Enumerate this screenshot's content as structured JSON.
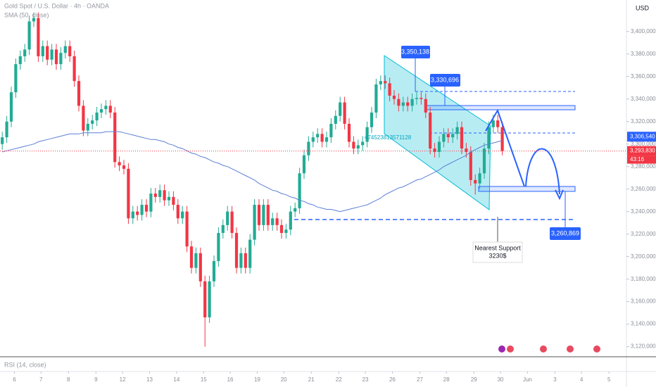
{
  "chart_data": {
    "type": "candlestick",
    "title": "Gold Spot / U.S. Dollar · 4h · OANDA",
    "currency": "USD",
    "open": [
      3300,
      3306,
      3320,
      3346,
      3371,
      3378,
      3384,
      3409,
      3412,
      3378,
      3387,
      3375,
      3384,
      3371,
      3381,
      3387,
      3378,
      3356,
      3334,
      3312,
      3318,
      3321,
      3328,
      3331,
      3334,
      3328,
      3284,
      3281,
      3278,
      3234,
      3240,
      3237,
      3246,
      3240,
      3256,
      3253,
      3259,
      3250,
      3253,
      3246,
      3234,
      3240,
      3209,
      3190,
      3203,
      3178,
      3146,
      3178,
      3196,
      3221,
      3228,
      3240,
      3221,
      3190,
      3203,
      3190,
      3215,
      3246,
      3228,
      3246,
      3228,
      3234,
      3228,
      3221,
      3224,
      3240,
      3243,
      3274,
      3290,
      3302,
      3306,
      3309,
      3302,
      3306,
      3318,
      3325,
      3337,
      3318,
      3302,
      3296,
      3299,
      3302,
      3315,
      3328,
      3353,
      3356,
      3354,
      3343,
      3340,
      3334,
      3337,
      3334,
      3340,
      3341,
      3340,
      3328,
      3296,
      3293,
      3302,
      3309,
      3306,
      3309,
      3315,
      3296,
      3293,
      3268,
      3265,
      3274,
      3296,
      3315,
      3321,
      3315
    ],
    "high": [
      3311,
      3325,
      3351,
      3376,
      3383,
      3389,
      3414,
      3417,
      3417,
      3392,
      3392,
      3389,
      3389,
      3386,
      3392,
      3392,
      3383,
      3361,
      3339,
      3323,
      3326,
      3333,
      3336,
      3339,
      3339,
      3333,
      3289,
      3286,
      3283,
      3245,
      3245,
      3251,
      3251,
      3261,
      3261,
      3264,
      3264,
      3258,
      3258,
      3251,
      3245,
      3245,
      3214,
      3208,
      3208,
      3183,
      3183,
      3201,
      3226,
      3233,
      3245,
      3245,
      3226,
      3208,
      3208,
      3220,
      3251,
      3251,
      3251,
      3251,
      3239,
      3239,
      3233,
      3229,
      3245,
      3248,
      3279,
      3295,
      3307,
      3311,
      3314,
      3314,
      3311,
      3323,
      3330,
      3342,
      3342,
      3323,
      3307,
      3304,
      3307,
      3320,
      3333,
      3358,
      3361,
      3361,
      3359,
      3348,
      3345,
      3342,
      3342,
      3345,
      3346,
      3346,
      3345,
      3333,
      3301,
      3307,
      3314,
      3314,
      3314,
      3320,
      3320,
      3301,
      3298,
      3273,
      3279,
      3301,
      3320,
      3326,
      3326,
      3320
    ],
    "low": [
      3295,
      3301,
      3315,
      3341,
      3366,
      3373,
      3379,
      3404,
      3373,
      3373,
      3370,
      3370,
      3366,
      3366,
      3376,
      3373,
      3351,
      3329,
      3307,
      3307,
      3313,
      3316,
      3323,
      3326,
      3323,
      3279,
      3276,
      3273,
      3229,
      3229,
      3232,
      3232,
      3235,
      3235,
      3248,
      3248,
      3245,
      3245,
      3241,
      3229,
      3229,
      3204,
      3185,
      3185,
      3173,
      3120,
      3141,
      3173,
      3191,
      3216,
      3223,
      3216,
      3185,
      3185,
      3185,
      3185,
      3210,
      3223,
      3223,
      3223,
      3223,
      3223,
      3216,
      3216,
      3219,
      3235,
      3238,
      3269,
      3285,
      3297,
      3301,
      3297,
      3297,
      3301,
      3313,
      3320,
      3313,
      3297,
      3291,
      3291,
      3294,
      3297,
      3310,
      3323,
      3348,
      3349,
      3338,
      3335,
      3329,
      3329,
      3329,
      3329,
      3335,
      3335,
      3323,
      3291,
      3288,
      3288,
      3297,
      3301,
      3301,
      3304,
      3291,
      3288,
      3263,
      3255,
      3260,
      3269,
      3291,
      3310,
      3310,
      3290
    ],
    "close": [
      3306,
      3320,
      3346,
      3371,
      3378,
      3384,
      3409,
      3412,
      3378,
      3387,
      3375,
      3384,
      3371,
      3381,
      3387,
      3378,
      3356,
      3334,
      3312,
      3318,
      3321,
      3328,
      3331,
      3334,
      3328,
      3284,
      3281,
      3278,
      3234,
      3240,
      3237,
      3246,
      3240,
      3256,
      3253,
      3259,
      3250,
      3253,
      3246,
      3234,
      3240,
      3209,
      3190,
      3203,
      3178,
      3146,
      3178,
      3196,
      3221,
      3228,
      3240,
      3221,
      3190,
      3203,
      3190,
      3215,
      3246,
      3228,
      3246,
      3228,
      3234,
      3228,
      3221,
      3224,
      3240,
      3243,
      3274,
      3290,
      3302,
      3306,
      3309,
      3302,
      3306,
      3318,
      3325,
      3337,
      3318,
      3302,
      3296,
      3299,
      3302,
      3315,
      3328,
      3353,
      3356,
      3354,
      3343,
      3340,
      3334,
      3337,
      3334,
      3340,
      3341,
      3340,
      3328,
      3296,
      3293,
      3302,
      3309,
      3306,
      3309,
      3315,
      3296,
      3293,
      3268,
      3265,
      3274,
      3296,
      3315,
      3321,
      3315,
      3293.83
    ],
    "up_color": "#22ab94",
    "down_color": "#f23645",
    "ma": {
      "name": "SMA (50, close)",
      "color": "#5b7fd6",
      "values": [
        3293,
        3294,
        3295,
        3296,
        3297,
        3298,
        3299,
        3300,
        3302,
        3303,
        3304,
        3305,
        3306,
        3307,
        3308,
        3309,
        3309,
        3309,
        3310,
        3310,
        3310,
        3310,
        3310,
        3311,
        3311,
        3311,
        3311,
        3310,
        3309,
        3308,
        3307,
        3306,
        3305,
        3304,
        3304,
        3303,
        3302,
        3300,
        3299,
        3297,
        3296,
        3294,
        3292,
        3291,
        3289,
        3288,
        3286,
        3284,
        3283,
        3281,
        3280,
        3278,
        3276,
        3274,
        3272,
        3270,
        3268,
        3265,
        3263,
        3261,
        3259,
        3258,
        3256,
        3255,
        3253,
        3252,
        3250,
        3249,
        3247,
        3246,
        3244,
        3243,
        3242,
        3242,
        3241,
        3240,
        3241,
        3242,
        3243,
        3244,
        3245,
        3246,
        3248,
        3250,
        3252,
        3255,
        3257,
        3259,
        3261,
        3262,
        3264,
        3266,
        3268,
        3269,
        3271,
        3273,
        3275,
        3277,
        3280,
        3282,
        3284,
        3286,
        3288,
        3290,
        3293,
        3295,
        3297,
        3299,
        3300,
        3301,
        3302,
        3303
      ]
    },
    "indicator": "RSI (14, close)",
    "xlim": [
      -0.5,
      144.5
    ],
    "ylim": [
      3111,
      3428
    ],
    "yticks": [
      {
        "value": 3400,
        "label": "3,400,000"
      },
      {
        "value": 3380,
        "label": "3,380,000"
      },
      {
        "value": 3360,
        "label": "3,360,000"
      },
      {
        "value": 3340,
        "label": "3,340,000"
      },
      {
        "value": 3320,
        "label": "3,320,000"
      },
      {
        "value": 3300,
        "label": "3,300,000"
      },
      {
        "value": 3280,
        "label": "3,280,000"
      },
      {
        "value": 3260,
        "label": "3,260,000"
      },
      {
        "value": 3240,
        "label": "3,240,000"
      },
      {
        "value": 3220,
        "label": "3,220,000"
      },
      {
        "value": 3200,
        "label": "3,200,000"
      },
      {
        "value": 3180,
        "label": "3,180,000"
      },
      {
        "value": 3160,
        "label": "3,160,000"
      },
      {
        "value": 3140,
        "label": "3,140,000"
      },
      {
        "value": 3120,
        "label": "3,120,000"
      }
    ],
    "xticks": [
      {
        "value": 2.7,
        "label": "6"
      },
      {
        "value": 8.6,
        "label": "7"
      },
      {
        "value": 14.7,
        "label": "8"
      },
      {
        "value": 20.8,
        "label": "9"
      },
      {
        "value": 26.7,
        "label": "12"
      },
      {
        "value": 32.7,
        "label": "13"
      },
      {
        "value": 38.7,
        "label": "14"
      },
      {
        "value": 44.7,
        "label": "15"
      },
      {
        "value": 50.6,
        "label": "16"
      },
      {
        "value": 56.6,
        "label": "19"
      },
      {
        "value": 62.5,
        "label": "20"
      },
      {
        "value": 68.6,
        "label": "21"
      },
      {
        "value": 74.7,
        "label": "22"
      },
      {
        "value": 80.6,
        "label": "23"
      },
      {
        "value": 86.6,
        "label": "26"
      },
      {
        "value": 92.7,
        "label": "27"
      },
      {
        "value": 98.6,
        "label": "28"
      },
      {
        "value": 104.7,
        "label": "29"
      },
      {
        "value": 110.6,
        "label": "30"
      },
      {
        "value": 116.6,
        "label": "Jun"
      },
      {
        "value": 122.7,
        "label": "3"
      },
      {
        "value": 128.6,
        "label": "4"
      },
      {
        "value": 134.7,
        "label": "5"
      }
    ],
    "level_tag": {
      "value": 3306.54,
      "label": "3,306,540"
    },
    "last_tag": {
      "value": 3293.83,
      "label": "3,293,830"
    },
    "countdown": "43:16",
    "annotations": [
      "3,350,138",
      "3,330,696",
      "3,260,869",
      "Nearest Support",
      "3230$",
      "474523813571128"
    ]
  }
}
